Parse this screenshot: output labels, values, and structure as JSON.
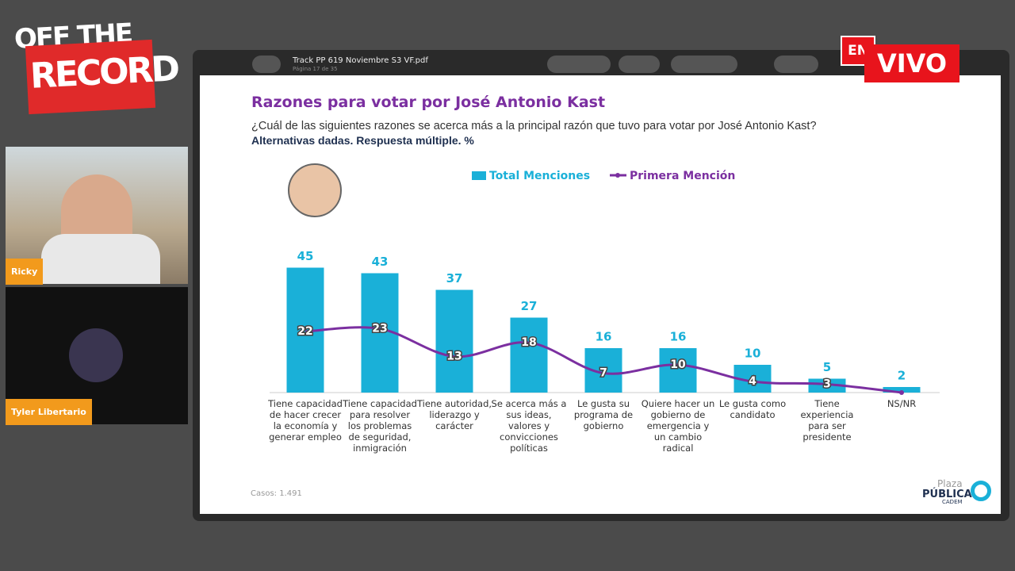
{
  "logo": {
    "line1": "OFF THE",
    "line2": "RECORD"
  },
  "participants": [
    {
      "name": "Ricky"
    },
    {
      "name": "Tyler Libertario"
    }
  ],
  "live_badge": {
    "en": "EN",
    "vivo": "VIVO"
  },
  "pdf_viewer": {
    "filename": "Track PP 619 Noviembre S3 VF.pdf",
    "page": "Página 17 de 35"
  },
  "chart_data": {
    "type": "bar",
    "title": "Razones para votar por José Antonio Kast",
    "subtitle": "¿Cuál de las siguientes razones se acerca más a la principal razón que tuvo para votar por José Antonio Kast?",
    "note": "Alternativas dadas. Respuesta múltiple. %",
    "categories": [
      "Tiene capacidad de hacer crecer la economía y generar empleo",
      "Tiene capacidad para resolver los problemas de seguridad, inmigración",
      "Tiene autoridad, liderazgo y carácter",
      "Se acerca más a sus ideas, valores y convicciones políticas",
      "Le gusta su programa de gobierno",
      "Quiere hacer un gobierno de emergencia y un cambio radical",
      "Le gusta como candidato",
      "Tiene experiencia para ser presidente",
      "NS/NR"
    ],
    "series": [
      {
        "name": "Total Menciones",
        "type": "bar",
        "color": "#1ab0d8",
        "values": [
          45,
          43,
          37,
          27,
          16,
          16,
          10,
          5,
          2
        ]
      },
      {
        "name": "Primera Mención",
        "type": "line",
        "color": "#7b2fa0",
        "values": [
          22,
          23,
          13,
          18,
          7,
          10,
          4,
          3,
          0
        ],
        "value_labels": [
          "22",
          "23",
          "13",
          "18",
          "7",
          "10",
          "4",
          "3",
          null
        ]
      }
    ],
    "footnote": "Casos: 1.491"
  },
  "brand": {
    "line1": "Plaza",
    "line2": "PÚBLICA",
    "line3": "CADEM"
  }
}
